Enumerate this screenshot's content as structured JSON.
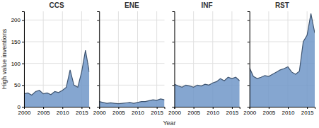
{
  "chart_data": [
    {
      "type": "area",
      "title": "CCS",
      "ylabel": "High value inventions",
      "xlabel": "Year",
      "x": [
        2000,
        2001,
        2002,
        2003,
        2004,
        2005,
        2006,
        2007,
        2008,
        2009,
        2010,
        2011,
        2012,
        2013,
        2014,
        2015,
        2016,
        2017
      ],
      "values": [
        30,
        32,
        27,
        35,
        38,
        30,
        32,
        28,
        35,
        33,
        38,
        45,
        85,
        50,
        45,
        80,
        130,
        80
      ],
      "color": "#7097C8",
      "xlim": [
        2000,
        2017
      ],
      "xticks": [
        2000,
        2005,
        2010,
        2015
      ],
      "ylim": [
        0,
        220
      ],
      "yticks": [
        0,
        50,
        100,
        150,
        200
      ],
      "grid": true
    },
    {
      "type": "area",
      "title": "ENE",
      "x": [
        2000,
        2001,
        2002,
        2003,
        2004,
        2005,
        2006,
        2007,
        2008,
        2009,
        2010,
        2011,
        2012,
        2013,
        2014,
        2015,
        2016,
        2017
      ],
      "values": [
        12,
        10,
        8,
        9,
        8,
        7,
        8,
        9,
        10,
        8,
        10,
        12,
        12,
        14,
        16,
        15,
        18,
        16
      ],
      "color": "#7097C8",
      "xlim": [
        2000,
        2017
      ],
      "xticks": [
        2000,
        2005,
        2010,
        2015
      ],
      "ylim": [
        0,
        220
      ],
      "yticks": [
        0,
        50,
        100,
        150,
        200
      ],
      "grid": true,
      "tick_labels": "x"
    },
    {
      "type": "area",
      "title": "INF",
      "x": [
        2000,
        2001,
        2002,
        2003,
        2004,
        2005,
        2006,
        2007,
        2008,
        2009,
        2010,
        2011,
        2012,
        2013,
        2014,
        2015,
        2016,
        2017
      ],
      "values": [
        52,
        48,
        45,
        50,
        48,
        45,
        50,
        48,
        52,
        50,
        55,
        58,
        65,
        60,
        68,
        65,
        68,
        60
      ],
      "color": "#7097C8",
      "xlim": [
        2000,
        2017
      ],
      "xticks": [
        2000,
        2005,
        2010,
        2015
      ],
      "ylim": [
        0,
        220
      ],
      "yticks": [
        0,
        50,
        100,
        150,
        200
      ],
      "grid": true,
      "tick_labels": "x"
    },
    {
      "type": "area",
      "title": "RST",
      "x": [
        2000,
        2001,
        2002,
        2003,
        2004,
        2005,
        2006,
        2007,
        2008,
        2009,
        2010,
        2011,
        2012,
        2013,
        2014,
        2015,
        2016,
        2017
      ],
      "values": [
        90,
        70,
        65,
        68,
        72,
        70,
        75,
        80,
        85,
        88,
        92,
        80,
        75,
        82,
        150,
        165,
        215,
        170
      ],
      "color": "#7097C8",
      "xlim": [
        2000,
        2017
      ],
      "xticks": [
        2000,
        2005,
        2010,
        2015
      ],
      "ylim": [
        0,
        220
      ],
      "yticks": [
        0,
        50,
        100,
        150,
        200
      ],
      "grid": true,
      "tick_labels": "x"
    }
  ]
}
